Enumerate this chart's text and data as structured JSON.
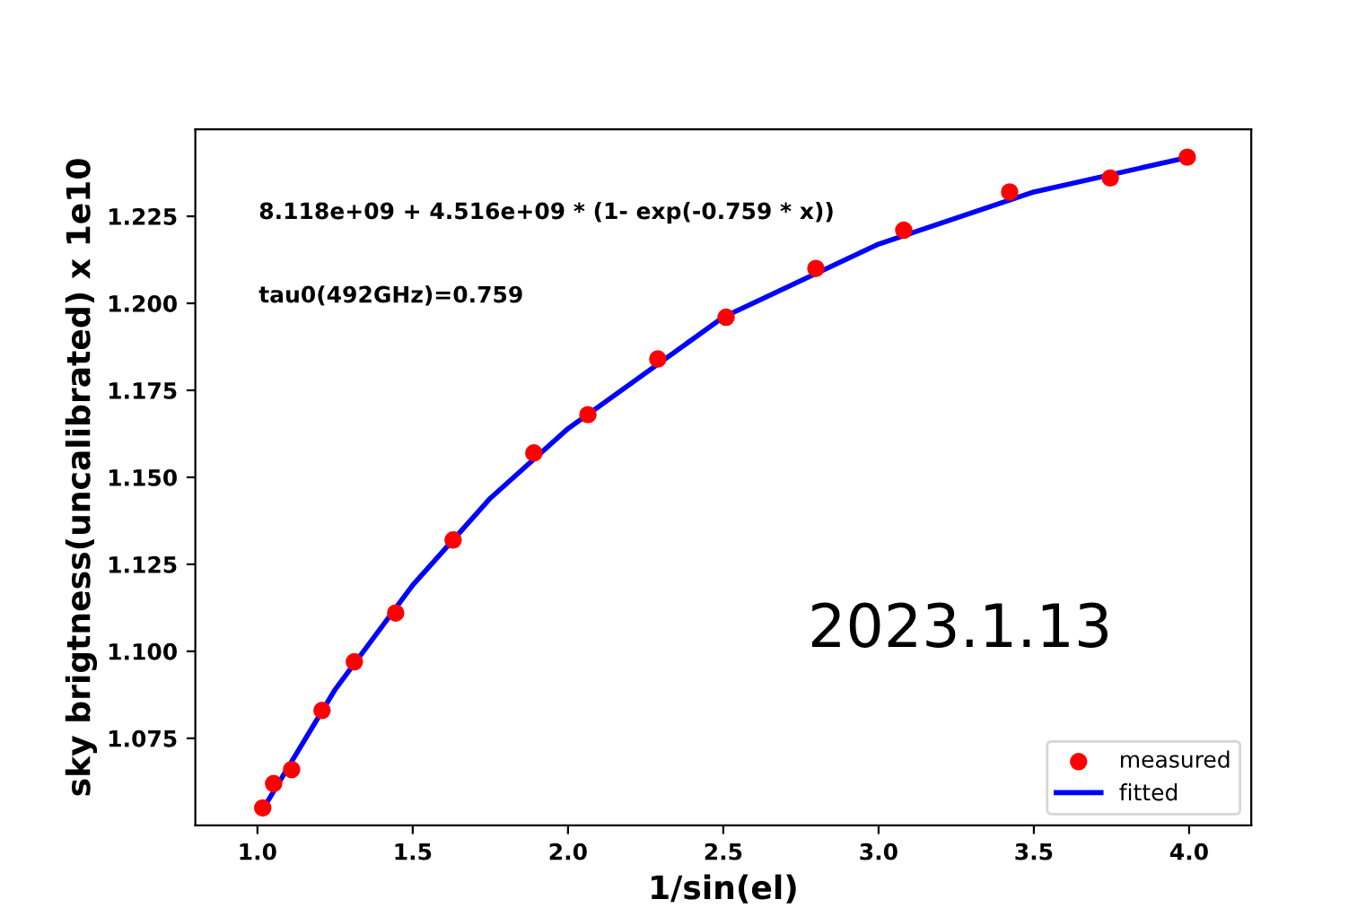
{
  "chart_data": {
    "type": "scatter",
    "xlabel": "1/sin(el)",
    "ylabel": "sky brigtness(uncalibrated) x 1e10",
    "series": [
      {
        "name": "measured",
        "color": "#ff0000",
        "marker": "circle",
        "x": [
          1.017,
          1.052,
          1.11,
          1.208,
          1.312,
          1.445,
          1.63,
          1.89,
          2.064,
          2.289,
          2.509,
          2.798,
          3.081,
          3.422,
          3.746,
          3.994
        ],
        "values": [
          1.055,
          1.062,
          1.066,
          1.083,
          1.097,
          1.111,
          1.132,
          1.157,
          1.168,
          1.184,
          1.196,
          1.21,
          1.221,
          1.232,
          1.236,
          1.242
        ]
      },
      {
        "name": "fitted",
        "type": "line",
        "color": "#0000ff",
        "line_style": "solid",
        "x": [
          1.02,
          1.25,
          1.5,
          1.75,
          2.0,
          2.5,
          3.0,
          3.5,
          4.0
        ],
        "values": [
          1.055,
          1.089,
          1.119,
          1.144,
          1.164,
          1.196,
          1.217,
          1.232,
          1.242
        ]
      }
    ],
    "xlim": [
      0.8,
      4.2
    ],
    "ylim": [
      1.05,
      1.25
    ],
    "xticks": [
      {
        "value": 1.0,
        "label": "1.0"
      },
      {
        "value": 1.5,
        "label": "1.5"
      },
      {
        "value": 2.0,
        "label": "2.0"
      },
      {
        "value": 2.5,
        "label": "2.5"
      },
      {
        "value": 3.0,
        "label": "3.0"
      },
      {
        "value": 3.5,
        "label": "3.5"
      },
      {
        "value": 4.0,
        "label": "4.0"
      }
    ],
    "yticks": [
      1.075,
      {
        "value": 1.1,
        "label": "1.100"
      },
      1.125,
      {
        "value": 1.15,
        "label": "1.150"
      },
      1.175,
      {
        "value": 1.2,
        "label": "1.200"
      },
      1.225
    ],
    "annotations": [
      "8.118e+09 + 4.516e+09 * (1- exp(-0.759 * x))",
      "tau0(492GHz)=0.759",
      "2023.1.13"
    ],
    "legend": "bottom right",
    "grid": false
  }
}
